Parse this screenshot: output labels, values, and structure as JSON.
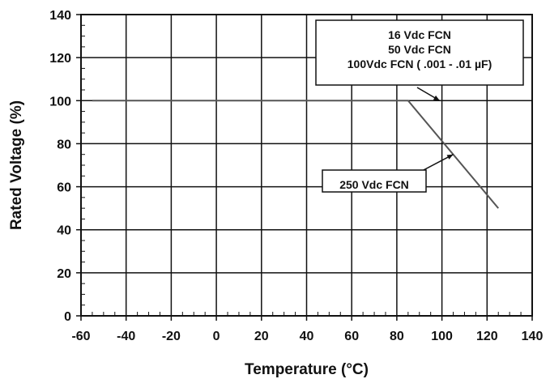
{
  "chart_data": {
    "type": "line",
    "title": "",
    "xlabel": "Temperature (°C)",
    "ylabel": "Rated Voltage (%)",
    "xlim": [
      -60,
      140
    ],
    "ylim": [
      0,
      140
    ],
    "xticks": [
      -60,
      -40,
      -20,
      0,
      20,
      40,
      60,
      80,
      100,
      120,
      140
    ],
    "yticks": [
      0,
      20,
      40,
      60,
      80,
      100,
      120,
      140
    ],
    "x_minor_step": 5,
    "y_minor_step": 5,
    "grid": true,
    "series": [
      {
        "x": [
          -55,
          85,
          125
        ],
        "y": [
          100,
          100,
          50
        ],
        "color": "#555555"
      }
    ],
    "annotations": [
      {
        "lines": [
          "16 Vdc FCN",
          "50 Vdc FCN",
          "100Vdc FCN ( .001 - .01 µF)"
        ],
        "arrow_to": {
          "x": 99,
          "y": 100
        }
      },
      {
        "lines": [
          "250 Vdc FCN"
        ],
        "arrow_to": {
          "x": 105,
          "y": 75
        }
      }
    ]
  }
}
